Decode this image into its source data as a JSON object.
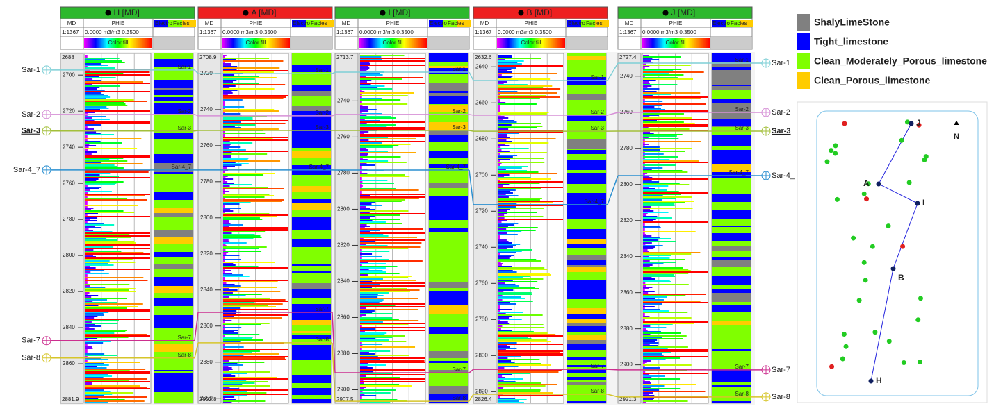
{
  "chart_data": {
    "type": "well-correlation",
    "wells": [
      {
        "name": "H [MD]",
        "color": "#2db82d",
        "md_label": "MD",
        "scale": "1:1367",
        "curve": "PHIE",
        "curve_range": "0.0000 m3/m3 0.3500",
        "fill_label": "Color fill",
        "facies_label": "Facies",
        "electro_label": "Electro",
        "depth_range": [
          2688,
          2881.9
        ],
        "ticks": [
          2700,
          2720,
          2740,
          2760,
          2780,
          2800,
          2820,
          2840,
          2860
        ]
      },
      {
        "name": "A [MD]",
        "color": "#ee2020",
        "md_label": "MD",
        "scale": "1:1367",
        "curve": "PHIE",
        "curve_range": "0.0000 m3/m3 0.3500",
        "fill_label": "Color fill",
        "facies_label": "Facies",
        "electro_label": "Electro",
        "depth_range": [
          2708.9,
          2902.8
        ],
        "ticks": [
          2720,
          2740,
          2760,
          2780,
          2800,
          2820,
          2840,
          2860,
          2880,
          2900
        ]
      },
      {
        "name": "I [MD]",
        "color": "#2db82d",
        "md_label": "MD",
        "scale": "1:1367",
        "curve": "PHIE",
        "curve_range": "0.0000 m3/m3 0.3500",
        "fill_label": "Color fill",
        "facies_label": "Facies",
        "electro_label": "Electro",
        "depth_range": [
          2713.7,
          2907.5
        ],
        "ticks": [
          2740,
          2760,
          2780,
          2800,
          2820,
          2840,
          2860,
          2880,
          2900
        ]
      },
      {
        "name": "B [MD]",
        "color": "#ee2020",
        "md_label": "MD",
        "scale": "1:1367",
        "curve": "PHIE",
        "curve_range": "0.0000 m3/m3 0.3500",
        "fill_label": "Color fill",
        "facies_label": "Facies",
        "electro_label": "Electro",
        "depth_range": [
          2632.6,
          2826.4
        ],
        "ticks": [
          2640,
          2660,
          2680,
          2700,
          2720,
          2740,
          2760,
          2780,
          2800,
          2820
        ]
      },
      {
        "name": "J [MD]",
        "color": "#2db82d",
        "md_label": "MD",
        "scale": "1:1367",
        "curve": "PHIE",
        "curve_range": "0.0000 m3/m3 0.3500",
        "fill_label": "Color fill",
        "facies_label": "Facies",
        "electro_label": "Electro",
        "depth_range": [
          2727.4,
          2921.3
        ],
        "ticks": [
          2740,
          2760,
          2780,
          2800,
          2820,
          2840,
          2860,
          2880,
          2900
        ]
      }
    ],
    "markers": [
      {
        "label": "Sar-1",
        "label_right": "Sar-1",
        "color": "#7ecfd6",
        "bold": false,
        "depths": [
          2697.2,
          2720.1,
          2724.1,
          2647.6,
          2732.8
        ]
      },
      {
        "label": "Sar-2",
        "label_right": "Sar-2",
        "color": "#d68fd6",
        "bold": false,
        "depths": [
          2721.8,
          2743.5,
          2747.5,
          2666.8,
          2760.1
        ]
      },
      {
        "label": "Sar-3",
        "label_right": "Sar-3",
        "color": "#a3bf3a",
        "bold": true,
        "depths": [
          2731,
          2751.6,
          2756.4,
          2675.7,
          2770.5
        ]
      },
      {
        "label": "Sar-4_7",
        "label_right": "Sar-4_",
        "color": "#2a8fd0",
        "bold": false,
        "depths": [
          2752.6,
          2773.5,
          2778.3,
          2716.4,
          2795.1
        ]
      },
      {
        "label": "Sar-7",
        "label_right": "Sar-7",
        "color": "#cc2f8f",
        "bold": false,
        "depths": [
          2847.2,
          2852.4,
          2890.6,
          2807.6,
          2902.8
        ]
      },
      {
        "label": "Sar-8",
        "label_right": "Sar-8",
        "color": "#d6c52a",
        "bold": false,
        "depths": [
          2856.8,
          2869.3,
          2906.4,
          2821.4,
          2917.8
        ]
      }
    ],
    "legend": [
      {
        "label": "ShalyLimeStone",
        "color": "#808080"
      },
      {
        "label": "Tight_limestone",
        "color": "#0000ff"
      },
      {
        "label": "Clean_Moderately_Porous_limestone",
        "color": "#80ff00"
      },
      {
        "label": "Clean_Porous_limestone",
        "color": "#ffcc00"
      }
    ],
    "map": {
      "north": "N",
      "wells": [
        "J",
        "A",
        "I",
        "B",
        "H"
      ]
    }
  }
}
